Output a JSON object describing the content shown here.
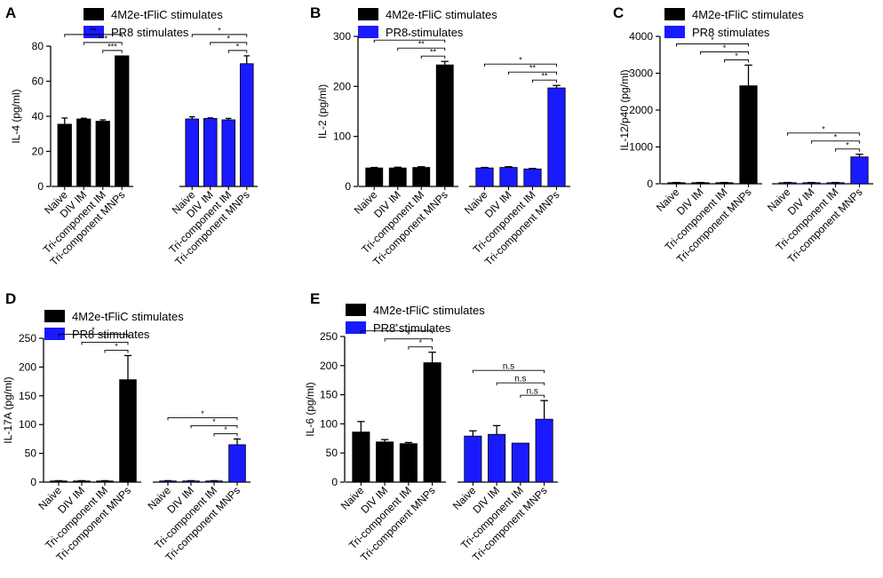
{
  "chart_data": [
    {
      "panel_label": "A",
      "type": "bar",
      "ylabel": "IL-4 (pg/ml)",
      "ylim": [
        0,
        80
      ],
      "yticks": [
        0,
        20,
        40,
        60,
        80
      ],
      "categories": [
        "Naive",
        "DIV IM",
        "Tri-component IM",
        "Tri-component MNPs"
      ],
      "legend": [
        "4M2e-tFliC stimulates",
        "PR8 stimulates"
      ],
      "series": [
        {
          "name": "4M2e-tFliC stimulates",
          "color": "#000000",
          "values": [
            35.5,
            38.5,
            37.2,
            74.5
          ],
          "errors": [
            3.5,
            0.4,
            0.8,
            0
          ],
          "significance": [
            {
              "from": 0,
              "label": "**"
            },
            {
              "from": 1,
              "label": "***"
            },
            {
              "from": 2,
              "label": "***"
            }
          ]
        },
        {
          "name": "PR8 stimulates",
          "color": "#1a1aff",
          "values": [
            38.5,
            38.8,
            38.0,
            70.0
          ],
          "errors": [
            1.2,
            0.3,
            0.8,
            4.5
          ],
          "significance": [
            {
              "from": 0,
              "label": "*"
            },
            {
              "from": 1,
              "label": "*"
            },
            {
              "from": 2,
              "label": "*"
            }
          ]
        }
      ]
    },
    {
      "panel_label": "B",
      "type": "bar",
      "ylabel": "IL-2 (pg/ml)",
      "ylim": [
        0,
        300
      ],
      "yticks": [
        0,
        100,
        200,
        300
      ],
      "categories": [
        "Naive",
        "DIV IM",
        "Tri-component IM",
        "Tri-component MNPs"
      ],
      "legend": [
        "4M2e-tFliC stimulates",
        "PR8 stimulates"
      ],
      "series": [
        {
          "name": "4M2e-tFliC stimulates",
          "color": "#000000",
          "values": [
            37,
            37,
            38,
            243
          ],
          "errors": [
            1,
            1.5,
            1.5,
            7
          ],
          "significance": [
            {
              "from": 0,
              "label": "*"
            },
            {
              "from": 1,
              "label": "**"
            },
            {
              "from": 2,
              "label": "**"
            }
          ]
        },
        {
          "name": "PR8 stimulates",
          "color": "#1a1aff",
          "values": [
            37,
            38,
            35,
            197
          ],
          "errors": [
            1,
            1.5,
            1,
            5
          ],
          "significance": [
            {
              "from": 0,
              "label": "*"
            },
            {
              "from": 1,
              "label": "**"
            },
            {
              "from": 2,
              "label": "**"
            }
          ]
        }
      ]
    },
    {
      "panel_label": "C",
      "type": "bar",
      "ylabel": "IL-12/p40 (pg/ml)",
      "ylim": [
        0,
        4000
      ],
      "yticks": [
        0,
        1000,
        2000,
        3000,
        4000
      ],
      "categories": [
        "Naive",
        "DIV IM",
        "Tri-component IM",
        "Tri-component MNPs"
      ],
      "legend": [
        "4M2e-tFliC stimulates",
        "PR8 stimulates"
      ],
      "series": [
        {
          "name": "4M2e-tFliC stimulates",
          "color": "#000000",
          "values": [
            30,
            30,
            30,
            2660
          ],
          "errors": [
            5,
            5,
            5,
            560
          ],
          "significance": [
            {
              "from": 0,
              "label": "*"
            },
            {
              "from": 1,
              "label": "*"
            },
            {
              "from": 2,
              "label": "*"
            }
          ]
        },
        {
          "name": "PR8 stimulates",
          "color": "#1a1aff",
          "values": [
            30,
            30,
            30,
            730
          ],
          "errors": [
            5,
            5,
            5,
            70
          ],
          "significance": [
            {
              "from": 0,
              "label": "*"
            },
            {
              "from": 1,
              "label": "*"
            },
            {
              "from": 2,
              "label": "*"
            }
          ]
        }
      ]
    },
    {
      "panel_label": "D",
      "type": "bar",
      "ylabel": "IL-17A (pg/ml)",
      "ylim": [
        0,
        250
      ],
      "yticks": [
        0,
        50,
        100,
        150,
        200,
        250
      ],
      "categories": [
        "Naive",
        "DIV IM",
        "Tri-component IM",
        "Tri-component MNPs"
      ],
      "legend": [
        "4M2e-tFliC stimulates",
        "PR8 stimulates"
      ],
      "series": [
        {
          "name": "4M2e-tFliC stimulates",
          "color": "#000000",
          "values": [
            2,
            2,
            2,
            178
          ],
          "errors": [
            0.5,
            0.5,
            0.5,
            42
          ],
          "significance": [
            {
              "from": 0,
              "label": "*"
            },
            {
              "from": 1,
              "label": "*"
            },
            {
              "from": 2,
              "label": "*"
            }
          ]
        },
        {
          "name": "PR8 stimulates",
          "color": "#1a1aff",
          "values": [
            2,
            2,
            2,
            65
          ],
          "errors": [
            0.5,
            0.5,
            0.5,
            10
          ],
          "significance": [
            {
              "from": 0,
              "label": "*"
            },
            {
              "from": 1,
              "label": "*"
            },
            {
              "from": 2,
              "label": "*"
            }
          ]
        }
      ]
    },
    {
      "panel_label": "E",
      "type": "bar",
      "ylabel": "IL-6 (pg/ml)",
      "ylim": [
        0,
        250
      ],
      "yticks": [
        0,
        50,
        100,
        150,
        200,
        250
      ],
      "categories": [
        "Naive",
        "DIV IM",
        "Tri-component IM",
        "Tri-component MNPs"
      ],
      "legend": [
        "4M2e-tFliC stimulates",
        "PR8 stimulates"
      ],
      "series": [
        {
          "name": "4M2e-tFliC stimulates",
          "color": "#000000",
          "values": [
            86,
            69,
            66,
            205
          ],
          "errors": [
            18,
            4,
            2,
            18
          ],
          "significance": [
            {
              "from": 0,
              "label": "*"
            },
            {
              "from": 1,
              "label": "*"
            },
            {
              "from": 2,
              "label": "*"
            }
          ]
        },
        {
          "name": "PR8 stimulates",
          "color": "#1a1aff",
          "values": [
            79,
            82,
            67,
            108
          ],
          "errors": [
            9,
            15,
            0,
            32
          ],
          "significance": [
            {
              "from": 0,
              "label": "n.s"
            },
            {
              "from": 1,
              "label": "n.s"
            },
            {
              "from": 2,
              "label": "n.s"
            }
          ]
        }
      ]
    }
  ]
}
